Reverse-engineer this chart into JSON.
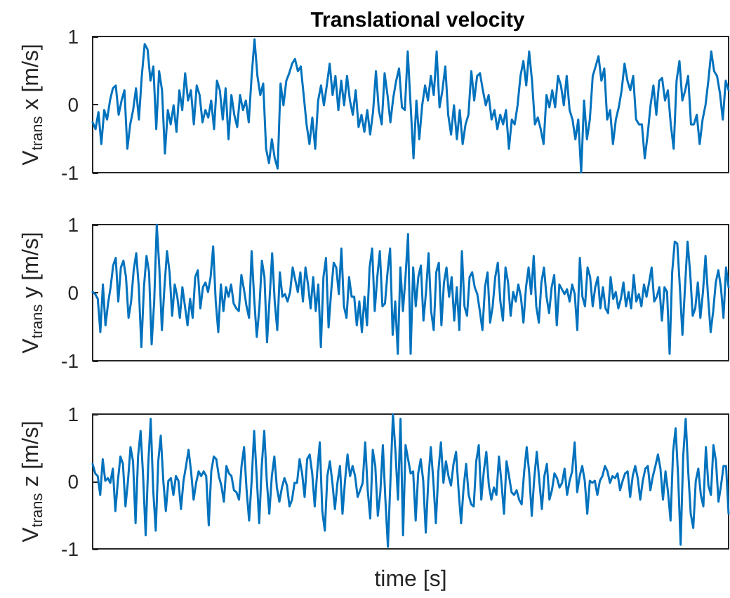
{
  "chart_data": [
    {
      "type": "line",
      "title": "Translational velocity",
      "ylabel": "V$_{trans}$ x [m/s]",
      "tick_labels": "y",
      "grid": false,
      "line_style": "solid",
      "ylim": [
        -1,
        1
      ],
      "yticks": [
        -1,
        0,
        1
      ],
      "categories": [
        null,
        null,
        null,
        null,
        null,
        null,
        null,
        null,
        null,
        null,
        null,
        null,
        null,
        null,
        null,
        null,
        null,
        null,
        null,
        null,
        null,
        null,
        null,
        null,
        null,
        null,
        null,
        null,
        null,
        null,
        null,
        null,
        null,
        null,
        null,
        null,
        null,
        null,
        null,
        null,
        null,
        null,
        null,
        null,
        null,
        null,
        null,
        null,
        null,
        null,
        null,
        null,
        null,
        null,
        null,
        null,
        null,
        null,
        null,
        null,
        null,
        null,
        null,
        null,
        null,
        null,
        null,
        null,
        null,
        null,
        null,
        null,
        null,
        null,
        null,
        null,
        null,
        null,
        null,
        null,
        null,
        null,
        null,
        null,
        null,
        null,
        null,
        null,
        null,
        null,
        null,
        null,
        null,
        null,
        null,
        null,
        null,
        null,
        null,
        null,
        null,
        null,
        null,
        null,
        null,
        null,
        null,
        null,
        null,
        null,
        null,
        null,
        null,
        null,
        null,
        null,
        null,
        null,
        null,
        null,
        null,
        null,
        null,
        null,
        null,
        null,
        null,
        null,
        null,
        null,
        null,
        null,
        null,
        null,
        null,
        null,
        null,
        null,
        null,
        null,
        null,
        null,
        null,
        null,
        null,
        null,
        null,
        null,
        null,
        null,
        null,
        null,
        null,
        null,
        null,
        null,
        null,
        null,
        null,
        null,
        null,
        null,
        null,
        null,
        null,
        null,
        null,
        null,
        null,
        null,
        null,
        null,
        null,
        null,
        null,
        null,
        null,
        null,
        null,
        null,
        null,
        null,
        null,
        null,
        null,
        null,
        null,
        null,
        null,
        null,
        null,
        null,
        null,
        null,
        null,
        null,
        null,
        null,
        null,
        null,
        null,
        null,
        null,
        null,
        null,
        null,
        null,
        null,
        null,
        null,
        null,
        null,
        null,
        null,
        null,
        null,
        null,
        null,
        null,
        null,
        null
      ],
      "series": [
        {
          "color": "#0072bd",
          "values": [
            -0.26,
            -0.36,
            -0.11,
            -0.58,
            -0.08,
            -0.22,
            0.06,
            0.24,
            0.28,
            -0.15,
            0.06,
            0.21,
            -0.65,
            -0.29,
            -0.08,
            0.24,
            -0.22,
            0.42,
            0.89,
            0.81,
            0.35,
            0.56,
            -0.36,
            0.49,
            0.21,
            -0.72,
            -0.08,
            -0.29,
            -0.01,
            -0.4,
            0.21,
            -0.08,
            0.46,
            0.06,
            0.21,
            -0.29,
            0.28,
            0.14,
            -0.26,
            -0.08,
            -0.19,
            0.06,
            -0.36,
            0.35,
            0.21,
            -0.22,
            0.24,
            -0.51,
            0.14,
            -0.15,
            -0.33,
            0.14,
            -0.08,
            0.06,
            -0.26,
            0.42,
            0.96,
            0.42,
            0.14,
            0.31,
            -0.65,
            -0.86,
            -0.51,
            -0.79,
            -0.94,
            0.31,
            -0.01,
            0.35,
            0.46,
            0.6,
            0.67,
            0.49,
            0.56,
            0.14,
            -0.29,
            -0.58,
            -0.19,
            -0.65,
            0.06,
            0.28,
            -0.01,
            0.28,
            0.6,
            0.14,
            0.42,
            -0.08,
            0.35,
            -0.01,
            0.42,
            0.06,
            -0.15,
            0.21,
            -0.33,
            -0.15,
            -0.4,
            -0.08,
            -0.44,
            -0.11,
            0.49,
            -0.08,
            -0.29,
            0.46,
            0.14,
            -0.26,
            0.1,
            0.35,
            0.53,
            -0.04,
            -0.08,
            0.78,
            -0.01,
            -0.79,
            0.06,
            -0.51,
            -0.01,
            0.28,
            0.06,
            0.42,
            0.14,
            0.78,
            -0.04,
            0.21,
            0.56,
            -0.15,
            -0.44,
            -0.01,
            -0.51,
            -0.08,
            -0.58,
            -0.29,
            -0.15,
            0.49,
            0.06,
            0.42,
            0.46,
            0.21,
            -0.01,
            0.14,
            -0.22,
            -0.08,
            -0.36,
            -0.15,
            -0.29,
            -0.08,
            -0.65,
            -0.22,
            -0.29,
            -0.01,
            0.42,
            0.64,
            0.28,
            0.78,
            0.35,
            -0.29,
            -0.19,
            -0.36,
            -0.58,
            0.14,
            -0.04,
            0.21,
            -0.04,
            0.42,
            0.28,
            -0.01,
            0.42,
            -0.08,
            -0.22,
            -0.51,
            -0.22,
            -1,
            0.06,
            -0.51,
            -0.22,
            0.42,
            0.56,
            0.71,
            0.35,
            0.53,
            -0.22,
            -0.08,
            -0.58,
            -0.22,
            -0.04,
            0.21,
            0.6,
            0.35,
            0.21,
            0.42,
            -0.22,
            -0.29,
            -0.29,
            -0.79,
            -0.44,
            -0.01,
            0.28,
            -0.15,
            0.35,
            0.39,
            0.06,
            0.21,
            -0.29,
            -0.65,
            0.35,
            0.64,
            0.06,
            0.21,
            0.42,
            -0.29,
            -0.29,
            -0.15,
            -0.58,
            -0.22,
            -0.01,
            0.35,
            0.78,
            0.49,
            0.42,
            0.17,
            -0.22,
            0.35,
            0.21
          ]
        }
      ]
    },
    {
      "type": "line",
      "ylabel": "V$_{trans}$ y [m/s]",
      "tick_labels": "y",
      "grid": false,
      "line_style": "solid",
      "ylim": [
        -1,
        1
      ],
      "yticks": [
        -1,
        0,
        1
      ],
      "categories": [
        null,
        null,
        null,
        null,
        null,
        null,
        null,
        null,
        null,
        null,
        null,
        null,
        null,
        null,
        null,
        null,
        null,
        null,
        null,
        null,
        null,
        null,
        null,
        null,
        null,
        null,
        null,
        null,
        null,
        null,
        null,
        null,
        null,
        null,
        null,
        null,
        null,
        null,
        null,
        null,
        null,
        null,
        null,
        null,
        null,
        null,
        null,
        null,
        null,
        null,
        null,
        null,
        null,
        null,
        null,
        null,
        null,
        null,
        null,
        null,
        null,
        null,
        null,
        null,
        null,
        null,
        null,
        null,
        null,
        null,
        null,
        null,
        null,
        null,
        null,
        null,
        null,
        null,
        null,
        null,
        null,
        null,
        null,
        null,
        null,
        null,
        null,
        null,
        null,
        null,
        null,
        null,
        null,
        null,
        null,
        null,
        null,
        null,
        null,
        null,
        null,
        null,
        null,
        null,
        null,
        null,
        null,
        null,
        null,
        null,
        null,
        null,
        null,
        null,
        null,
        null,
        null,
        null,
        null,
        null,
        null,
        null,
        null,
        null,
        null,
        null,
        null,
        null,
        null,
        null,
        null,
        null,
        null,
        null,
        null,
        null,
        null,
        null,
        null,
        null,
        null,
        null,
        null,
        null,
        null,
        null,
        null,
        null,
        null,
        null,
        null,
        null,
        null,
        null,
        null,
        null,
        null,
        null,
        null,
        null,
        null,
        null,
        null,
        null,
        null,
        null,
        null,
        null,
        null,
        null,
        null,
        null,
        null,
        null,
        null,
        null,
        null,
        null,
        null,
        null,
        null,
        null,
        null,
        null,
        null,
        null,
        null,
        null,
        null,
        null,
        null,
        null,
        null,
        null,
        null,
        null,
        null,
        null,
        null,
        null,
        null,
        null,
        null,
        null,
        null,
        null,
        null,
        null,
        null,
        null,
        null,
        null,
        null,
        null,
        null,
        null,
        null,
        null,
        null,
        null,
        null,
        null,
        null,
        null,
        null,
        null,
        null,
        null,
        null,
        null,
        null,
        null,
        null,
        null,
        null,
        null,
        null,
        null,
        null,
        null,
        null,
        null,
        null,
        null,
        null,
        null,
        null,
        null,
        null
      ],
      "series": [
        {
          "color": "#0072bd",
          "values": [
            0.01,
            -0.02,
            -0.09,
            -0.58,
            0.12,
            -0.48,
            -0.16,
            0.08,
            0.4,
            0.51,
            -0.13,
            0.37,
            0.47,
            0.23,
            -0.37,
            -0.13,
            0.33,
            0.58,
            0.08,
            -0.8,
            0.08,
            0.54,
            0.3,
            -0.76,
            -0.13,
            1.0,
            0.37,
            -0.55,
            0.08,
            0.61,
            0.3,
            -0.34,
            0.12,
            -0.06,
            -0.37,
            0.08,
            -0.2,
            -0.48,
            -0.09,
            -0.37,
            0.23,
            0.33,
            -0.23,
            0.08,
            0.15,
            0.01,
            0.23,
            0.68,
            -0.13,
            -0.58,
            0.12,
            -0.27,
            0.08,
            -0.06,
            0.12,
            -0.16,
            -0.23,
            -0.27,
            0.26,
            0.05,
            -0.2,
            -0.37,
            0.61,
            -0.09,
            -0.65,
            -0.23,
            0.47,
            0.23,
            -0.73,
            -0.09,
            0.58,
            -0.13,
            -0.55,
            0.3,
            -0.06,
            -0.02,
            -0.13,
            0.01,
            0.37,
            0.19,
            0.01,
            0.3,
            -0.13,
            0.37,
            0.12,
            -0.23,
            0.23,
            -0.27,
            0.12,
            -0.8,
            0.23,
            0.51,
            -0.51,
            0.01,
            0.44,
            0.37,
            -0.02,
            0.65,
            -0.2,
            -0.37,
            0.23,
            -0.06,
            -0.06,
            -0.48,
            -0.13,
            -0.58,
            -0.06,
            -0.48,
            0.37,
            0.65,
            -0.27,
            0.23,
            0.61,
            -0.2,
            -0.16,
            0.3,
            0.65,
            -0.62,
            -0.13,
            -0.9,
            0.37,
            -0.27,
            0.23,
            0.86,
            -0.9,
            0.37,
            -0.2,
            0.23,
            0.4,
            -0.41,
            0.01,
            0.58,
            -0.27,
            -0.55,
            0.3,
            0.44,
            -0.48,
            0.15,
            0.37,
            -0.06,
            0.23,
            -0.41,
            0.08,
            -0.55,
            0.61,
            -0.2,
            -0.34,
            0.23,
            0.3,
            0.08,
            -0.02,
            -0.27,
            -0.55,
            0.08,
            0.3,
            -0.44,
            -0.2,
            0.23,
            0.44,
            -0.13,
            -0.41,
            0.37,
            0.15,
            -0.34,
            0.01,
            -0.13,
            0.12,
            -0.06,
            -0.44,
            0.08,
            0.37,
            -0.02,
            0.54,
            -0.2,
            -0.44,
            0.15,
            0.37,
            -0.06,
            -0.3,
            0.08,
            0.26,
            -0.48,
            0.12,
            0.05,
            -0.02,
            0.05,
            -0.13,
            0.12,
            -0.02,
            -0.55,
            0.51,
            -0.06,
            -0.2,
            0.37,
            0.23,
            -0.2,
            0.08,
            0.23,
            -0.23,
            0.08,
            -0.23,
            -0.3,
            0.23,
            -0.09,
            0.01,
            -0.23,
            -0.09,
            0.15,
            -0.2,
            0.01,
            -0.23,
            0.26,
            -0.13,
            -0.02,
            -0.2,
            0.12,
            -0.06,
            0.15,
            0.37,
            -0.13,
            -0.06,
            0.08,
            -0.41,
            0.08,
            0.01,
            -0.9,
            0.3,
            0.75,
            0.72,
            0.08,
            -0.62,
            0.08,
            0.75,
            0.3,
            -0.34,
            -0.23,
            0.15,
            -0.37,
            0.01,
            0.54,
            -0.06,
            -0.58,
            -0.27,
            0.15,
            0.33,
            0.08,
            -0.37,
            0.37,
            0.08
          ]
        }
      ]
    },
    {
      "type": "line",
      "ylabel": "V$_{trans}$ z [m/s]",
      "xlabel": "time [s]",
      "tick_labels": "y",
      "grid": false,
      "line_style": "solid",
      "ylim": [
        -1,
        1
      ],
      "yticks": [
        -1,
        0,
        1
      ],
      "categories": [
        null,
        null,
        null,
        null,
        null,
        null,
        null,
        null,
        null,
        null,
        null,
        null,
        null,
        null,
        null,
        null,
        null,
        null,
        null,
        null,
        null,
        null,
        null,
        null,
        null,
        null,
        null,
        null,
        null,
        null,
        null,
        null,
        null,
        null,
        null,
        null,
        null,
        null,
        null,
        null,
        null,
        null,
        null,
        null,
        null,
        null,
        null,
        null,
        null,
        null,
        null,
        null,
        null,
        null,
        null,
        null,
        null,
        null,
        null,
        null,
        null,
        null,
        null,
        null,
        null,
        null,
        null,
        null,
        null,
        null,
        null,
        null,
        null,
        null,
        null,
        null,
        null,
        null,
        null,
        null,
        null,
        null,
        null,
        null,
        null,
        null,
        null,
        null,
        null,
        null,
        null,
        null,
        null,
        null,
        null,
        null,
        null,
        null,
        null,
        null,
        null,
        null,
        null,
        null,
        null,
        null,
        null,
        null,
        null,
        null,
        null,
        null,
        null,
        null,
        null,
        null,
        null,
        null,
        null,
        null,
        null,
        null,
        null,
        null,
        null,
        null,
        null,
        null,
        null,
        null,
        null,
        null,
        null,
        null,
        null,
        null,
        null,
        null,
        null,
        null,
        null,
        null,
        null,
        null,
        null,
        null,
        null,
        null,
        null,
        null,
        null,
        null,
        null,
        null,
        null,
        null,
        null,
        null,
        null,
        null,
        null,
        null,
        null,
        null,
        null,
        null,
        null,
        null,
        null,
        null,
        null,
        null,
        null,
        null,
        null,
        null,
        null,
        null,
        null,
        null,
        null,
        null,
        null,
        null,
        null,
        null,
        null,
        null,
        null,
        null,
        null,
        null,
        null,
        null,
        null,
        null,
        null,
        null,
        null,
        null,
        null,
        null,
        null,
        null,
        null,
        null,
        null,
        null,
        null,
        null,
        null,
        null,
        null,
        null,
        null,
        null,
        null,
        null,
        null,
        null,
        null,
        null,
        null,
        null,
        null,
        null,
        null,
        null,
        null,
        null,
        null,
        null,
        null,
        null,
        null,
        null,
        null,
        null,
        null,
        null,
        null,
        null,
        null,
        null,
        null,
        null,
        null,
        null,
        null,
        null,
        null,
        null,
        null
      ],
      "series": [
        {
          "color": "#0072bd",
          "values": [
            0.26,
            0.12,
            0.08,
            -0.2,
            0.33,
            0.01,
            0.05,
            -0.02,
            0.19,
            -0.44,
            0.01,
            0.37,
            0.26,
            -0.37,
            0.01,
            0.51,
            0.3,
            -0.62,
            0.37,
            0.75,
            0.08,
            -0.8,
            0.23,
            0.93,
            -0.13,
            -0.73,
            0.3,
            0.68,
            0.01,
            -0.44,
            0.01,
            0.05,
            -0.2,
            0.08,
            0.01,
            -0.41,
            0.01,
            0.23,
            0.47,
            0.15,
            -0.27,
            -0.02,
            0.15,
            0.08,
            0.15,
            0.08,
            -0.65,
            0.15,
            0.37,
            0.33,
            0.08,
            -0.06,
            -0.3,
            0.23,
            0.12,
            0.08,
            -0.13,
            -0.16,
            -0.27,
            0.23,
            0.51,
            -0.13,
            -0.58,
            0.01,
            0.75,
            0.08,
            -0.62,
            0.23,
            0.75,
            0.01,
            -0.48,
            0.08,
            0.37,
            -0.09,
            -0.3,
            -0.09,
            0.05,
            -0.06,
            -0.37,
            -0.27,
            -0.02,
            -0.02,
            0.33,
            0.12,
            -0.23,
            0.33,
            0.4,
            0.12,
            -0.37,
            0.15,
            0.58,
            -0.44,
            -0.73,
            0.08,
            0.3,
            -0.02,
            -0.41,
            -0.02,
            0.23,
            -0.48,
            0.01,
            0.4,
            0.08,
            0.23,
            0.08,
            -0.23,
            -0.13,
            -0.02,
            0.58,
            -0.13,
            -0.55,
            0.47,
            0.23,
            -0.51,
            -0.16,
            0.54,
            -0.27,
            -0.97,
            0.01,
            1.0,
            0.44,
            -0.27,
            0.93,
            -0.8,
            0.54,
            0.33,
            0.12,
            0.15,
            -0.58,
            0.12,
            0.33,
            0.01,
            -0.76,
            0.01,
            0.51,
            0.01,
            -0.62,
            0.15,
            0.58,
            -0.02,
            0.3,
            0.08,
            -0.06,
            0.26,
            0.44,
            -0.13,
            -0.62,
            -0.09,
            0.26,
            -0.2,
            -0.34,
            -0.37,
            0.3,
            0.54,
            -0.27,
            0.15,
            0.44,
            -0.06,
            -0.27,
            -0.09,
            -0.2,
            0.37,
            -0.02,
            -0.48,
            0.3,
            0.08,
            -0.16,
            -0.2,
            -0.13,
            -0.27,
            -0.34,
            0.15,
            0.51,
            0.12,
            -0.51,
            0.05,
            0.44,
            0.01,
            -0.41,
            0.08,
            0.26,
            -0.27,
            -0.13,
            0.12,
            0.05,
            -0.09,
            -0.02,
            0.19,
            -0.2,
            0.01,
            0.15,
            0.58,
            -0.16,
            0.08,
            0.23,
            0.01,
            -0.48,
            0.01,
            -0.02,
            0.01,
            -0.2,
            0.01,
            0.08,
            0.23,
            0.15,
            -0.02,
            0.08,
            0.05,
            0.12,
            -0.13,
            0.01,
            0.12,
            0.15,
            -0.23,
            0.08,
            0.23,
            0.05,
            -0.27,
            0.01,
            0.19,
            0.23,
            -0.13,
            0.08,
            0.23,
            0.4,
            0.19,
            -0.27,
            0.15,
            -0.16,
            -0.58,
            0.44,
            0.79,
            0.08,
            -0.94,
            0.37,
            0.93,
            0.15,
            -0.48,
            -0.69,
            0.01,
            0.19,
            -0.2,
            -0.37,
            0.51,
            -0.06,
            -0.2,
            0.54,
            0.3,
            -0.3,
            -0.06,
            0.23,
            0.23,
            -0.48
          ]
        }
      ]
    }
  ]
}
